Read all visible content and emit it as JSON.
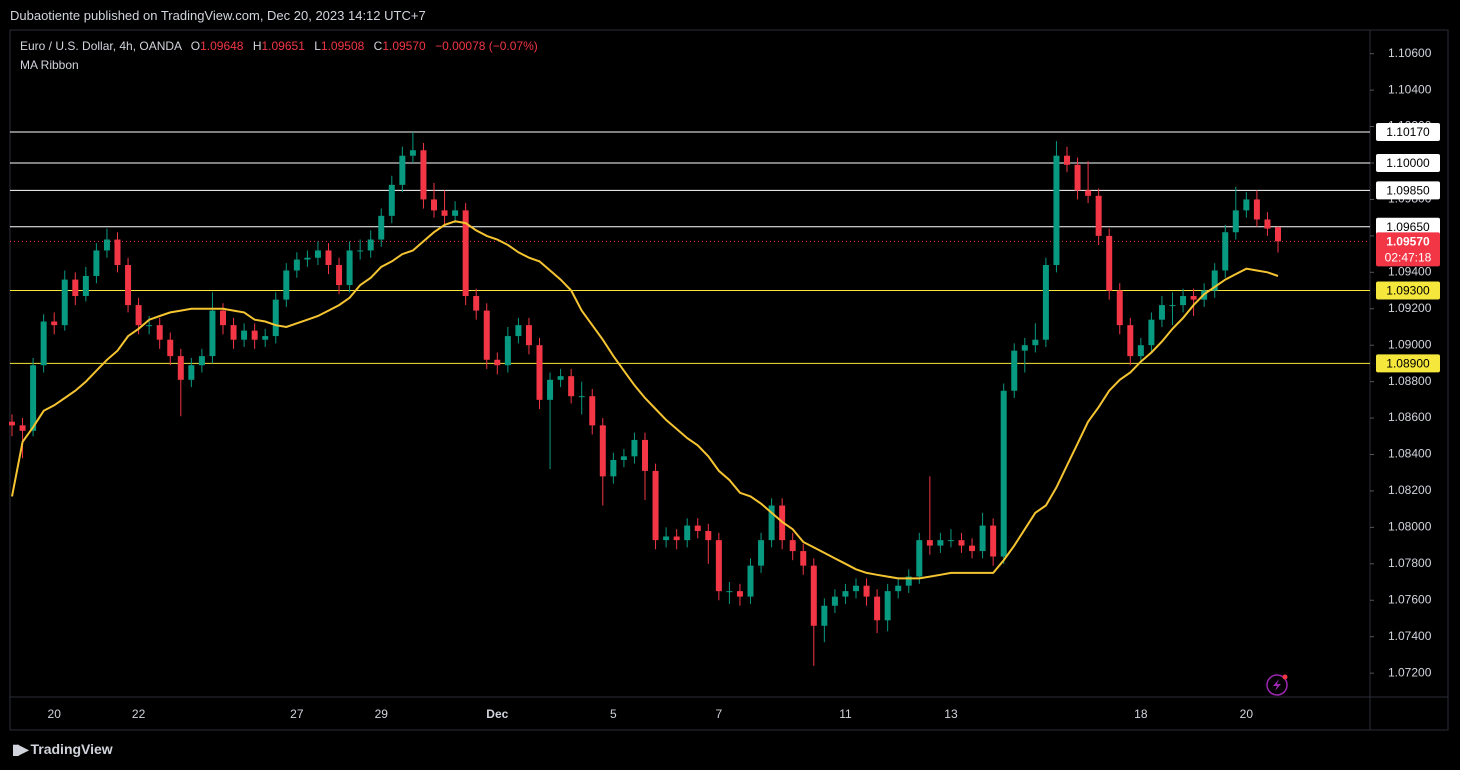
{
  "header": {
    "published": "Dubaotiente published on TradingView.com, Dec 20, 2023 14:12 UTC+7",
    "symbol": "Euro / U.S. Dollar, 4h, OANDA",
    "o_key": "O",
    "o": "1.09648",
    "h_key": "H",
    "h": "1.09651",
    "l_key": "L",
    "l": "1.09508",
    "c_key": "C",
    "c": "1.09570",
    "change": "−0.00078 (−0.07%)",
    "indicator": "MA Ribbon"
  },
  "chart_data": {
    "type": "candlestick",
    "up_color": "#089981",
    "down_color": "#f23645",
    "ma_color": "#f5c431",
    "ohlc": [
      [
        1.0858,
        1.0862,
        1.085,
        1.0856
      ],
      [
        1.0856,
        1.086,
        1.0838,
        1.0853
      ],
      [
        1.0853,
        1.0893,
        1.085,
        1.0889
      ],
      [
        1.0889,
        1.0917,
        1.0885,
        1.0913
      ],
      [
        1.0913,
        1.0918,
        1.0906,
        1.0911
      ],
      [
        1.0911,
        1.0941,
        1.0908,
        1.0936
      ],
      [
        1.0936,
        1.094,
        1.0922,
        1.0927
      ],
      [
        1.0927,
        1.0943,
        1.0924,
        1.0938
      ],
      [
        1.0938,
        1.0956,
        1.0934,
        1.0952
      ],
      [
        1.0952,
        1.0964,
        1.0948,
        1.0958
      ],
      [
        1.0958,
        1.0962,
        1.094,
        1.0944
      ],
      [
        1.0944,
        1.0948,
        1.0918,
        1.0922
      ],
      [
        1.0922,
        1.0926,
        1.0906,
        1.0911
      ],
      [
        1.0911,
        1.0916,
        1.0906,
        1.0911
      ],
      [
        1.0911,
        1.0915,
        1.0898,
        1.0903
      ],
      [
        1.0903,
        1.0907,
        1.0889,
        1.0894
      ],
      [
        1.0894,
        1.0898,
        1.0861,
        1.0881
      ],
      [
        1.0881,
        1.0893,
        1.0877,
        1.0889
      ],
      [
        1.0889,
        1.0898,
        1.0885,
        1.0894
      ],
      [
        1.0894,
        1.0929,
        1.089,
        1.0919
      ],
      [
        1.0919,
        1.0923,
        1.0906,
        1.0911
      ],
      [
        1.0911,
        1.0915,
        1.0898,
        1.0903
      ],
      [
        1.0903,
        1.0912,
        1.0899,
        1.0908
      ],
      [
        1.0908,
        1.0912,
        1.0898,
        1.0903
      ],
      [
        1.0903,
        1.0909,
        1.0899,
        1.0905
      ],
      [
        1.0905,
        1.0929,
        1.0901,
        1.0925
      ],
      [
        1.0925,
        1.0945,
        1.0921,
        1.0941
      ],
      [
        1.0941,
        1.0951,
        1.0937,
        1.0947
      ],
      [
        1.0947,
        1.0952,
        1.0943,
        1.0948
      ],
      [
        1.0948,
        1.0957,
        1.0944,
        1.0952
      ],
      [
        1.0952,
        1.0956,
        1.0939,
        1.0944
      ],
      [
        1.0944,
        1.0948,
        1.0928,
        1.0933
      ],
      [
        1.0933,
        1.0957,
        1.0929,
        1.0952
      ],
      [
        1.0952,
        1.0958,
        1.0947,
        1.0952
      ],
      [
        1.0952,
        1.0963,
        1.0948,
        1.0958
      ],
      [
        1.0958,
        1.0975,
        1.0954,
        1.0971
      ],
      [
        1.0971,
        1.0993,
        1.0967,
        1.0988
      ],
      [
        1.0988,
        1.1009,
        1.0984,
        1.1004
      ],
      [
        1.1004,
        1.1017,
        1.1,
        1.1007
      ],
      [
        1.1007,
        1.1011,
        1.0975,
        1.098
      ],
      [
        1.098,
        1.0989,
        1.097,
        1.0974
      ],
      [
        1.0974,
        1.0985,
        1.0966,
        1.0971
      ],
      [
        1.0971,
        1.0979,
        1.0967,
        1.0974
      ],
      [
        1.0974,
        1.0978,
        1.0922,
        1.0927
      ],
      [
        1.0927,
        1.0931,
        1.0914,
        1.0919
      ],
      [
        1.0919,
        1.0923,
        1.0887,
        1.0892
      ],
      [
        1.0892,
        1.0896,
        1.0884,
        1.0889
      ],
      [
        1.0889,
        1.091,
        1.0885,
        1.0905
      ],
      [
        1.0905,
        1.0915,
        1.0901,
        1.0911
      ],
      [
        1.0911,
        1.0915,
        1.0895,
        1.09
      ],
      [
        1.09,
        1.0904,
        1.0865,
        1.087
      ],
      [
        1.087,
        1.0885,
        1.0832,
        1.0881
      ],
      [
        1.0881,
        1.0887,
        1.0877,
        1.0883
      ],
      [
        1.0883,
        1.0887,
        1.0868,
        1.0872
      ],
      [
        1.0872,
        1.088,
        1.0862,
        1.0872
      ],
      [
        1.0872,
        1.0876,
        1.0851,
        1.0856
      ],
      [
        1.0856,
        1.086,
        1.0812,
        1.0828
      ],
      [
        1.0828,
        1.0841,
        1.0824,
        1.0837
      ],
      [
        1.0837,
        1.0843,
        1.0833,
        1.0839
      ],
      [
        1.0839,
        1.0852,
        1.0835,
        1.0848
      ],
      [
        1.0848,
        1.0852,
        1.0815,
        1.0831
      ],
      [
        1.0831,
        1.0835,
        1.0788,
        1.0793
      ],
      [
        1.0793,
        1.08,
        1.0789,
        1.0795
      ],
      [
        1.0795,
        1.0799,
        1.0788,
        1.0793
      ],
      [
        1.0793,
        1.0805,
        1.0789,
        1.0801
      ],
      [
        1.0801,
        1.0805,
        1.0794,
        1.0798
      ],
      [
        1.0798,
        1.0802,
        1.078,
        1.0793
      ],
      [
        1.0793,
        1.0797,
        1.076,
        1.0765
      ],
      [
        1.0765,
        1.077,
        1.0758,
        1.0765
      ],
      [
        1.0765,
        1.0769,
        1.0757,
        1.0762
      ],
      [
        1.0762,
        1.0783,
        1.0758,
        1.0779
      ],
      [
        1.0779,
        1.0797,
        1.0775,
        1.0793
      ],
      [
        1.0793,
        1.0816,
        1.0789,
        1.0812
      ],
      [
        1.0812,
        1.0816,
        1.0788,
        1.0793
      ],
      [
        1.0793,
        1.0797,
        1.0782,
        1.0787
      ],
      [
        1.0787,
        1.0791,
        1.0774,
        1.0779
      ],
      [
        1.0779,
        1.0783,
        1.0724,
        1.0746
      ],
      [
        1.0746,
        1.0761,
        1.0737,
        1.0757
      ],
      [
        1.0757,
        1.0766,
        1.0753,
        1.0762
      ],
      [
        1.0762,
        1.0769,
        1.0758,
        1.0765
      ],
      [
        1.0765,
        1.0772,
        1.0761,
        1.0768
      ],
      [
        1.0768,
        1.0772,
        1.0757,
        1.0762
      ],
      [
        1.0762,
        1.0766,
        1.0742,
        1.0749
      ],
      [
        1.0749,
        1.0769,
        1.0743,
        1.0765
      ],
      [
        1.0765,
        1.0772,
        1.0761,
        1.0768
      ],
      [
        1.0768,
        1.0777,
        1.0764,
        1.0773
      ],
      [
        1.0773,
        1.0797,
        1.0769,
        1.0793
      ],
      [
        1.0793,
        1.0828,
        1.0785,
        1.079
      ],
      [
        1.079,
        1.0797,
        1.0786,
        1.0793
      ],
      [
        1.0793,
        1.0799,
        1.0789,
        1.0793
      ],
      [
        1.0793,
        1.0797,
        1.0786,
        1.079
      ],
      [
        1.079,
        1.0794,
        1.0783,
        1.0787
      ],
      [
        1.0787,
        1.0808,
        1.0783,
        1.0801
      ],
      [
        1.0801,
        1.0805,
        1.0779,
        1.0784
      ],
      [
        1.0784,
        1.0879,
        1.078,
        1.0875
      ],
      [
        1.0875,
        1.0901,
        1.0871,
        1.0897
      ],
      [
        1.0897,
        1.0904,
        1.0885,
        1.09
      ],
      [
        1.09,
        1.0912,
        1.0896,
        1.0903
      ],
      [
        1.0903,
        1.0948,
        1.0899,
        1.0944
      ],
      [
        1.0944,
        1.1012,
        1.094,
        1.1004
      ],
      [
        1.1004,
        1.1009,
        1.0995,
        1.0999
      ],
      [
        1.0999,
        1.1003,
        1.098,
        1.0985
      ],
      [
        1.0985,
        1.1001,
        1.0978,
        1.0982
      ],
      [
        1.0982,
        1.0986,
        1.0955,
        1.096
      ],
      [
        1.096,
        1.0964,
        1.0925,
        1.093
      ],
      [
        1.093,
        1.0934,
        1.0906,
        1.0911
      ],
      [
        1.0911,
        1.0915,
        1.0889,
        1.0894
      ],
      [
        1.0894,
        1.0904,
        1.089,
        1.09
      ],
      [
        1.09,
        1.0918,
        1.0896,
        1.0914
      ],
      [
        1.0914,
        1.0927,
        1.091,
        1.0922
      ],
      [
        1.0922,
        1.0929,
        1.0911,
        1.0922
      ],
      [
        1.0922,
        1.0931,
        1.0918,
        1.0927
      ],
      [
        1.0927,
        1.0931,
        1.0916,
        1.0925
      ],
      [
        1.0925,
        1.0934,
        1.0921,
        1.093
      ],
      [
        1.093,
        1.0945,
        1.0926,
        1.0941
      ],
      [
        1.0941,
        1.0966,
        1.0937,
        1.0962
      ],
      [
        1.0962,
        1.0987,
        1.0958,
        1.0974
      ],
      [
        1.0974,
        1.0984,
        1.097,
        1.098
      ],
      [
        1.098,
        1.0985,
        1.0965,
        1.0969
      ],
      [
        1.0969,
        1.0973,
        1.096,
        1.0964
      ],
      [
        1.09648,
        1.09651,
        1.09508,
        1.0957
      ]
    ],
    "ma_values": [
      1.0817,
      1.0847,
      1.0855,
      1.0864,
      1.0867,
      1.0871,
      1.0875,
      1.088,
      1.0886,
      1.0892,
      1.0897,
      1.0905,
      1.0909,
      1.0914,
      1.0916,
      1.0918,
      1.0919,
      1.092,
      1.092,
      1.092,
      1.092,
      1.0919,
      1.0918,
      1.0914,
      1.0913,
      1.0911,
      1.091,
      1.0912,
      1.0914,
      1.0916,
      1.0919,
      1.0922,
      1.0926,
      1.0933,
      1.0937,
      1.0943,
      1.0946,
      1.095,
      1.0952,
      1.0957,
      1.0962,
      1.0966,
      1.0968,
      1.0967,
      1.0963,
      1.096,
      1.0958,
      1.0955,
      1.0951,
      1.0948,
      1.0946,
      1.0941,
      1.0936,
      1.093,
      1.0919,
      1.0911,
      1.0903,
      1.0894,
      1.0886,
      1.0878,
      1.0871,
      1.0865,
      1.0859,
      1.0854,
      1.0849,
      1.0845,
      1.0839,
      1.0831,
      1.0826,
      1.0819,
      1.0817,
      1.0813,
      1.0808,
      1.0803,
      1.0799,
      1.0792,
      1.0789,
      1.0786,
      1.0783,
      1.078,
      1.0777,
      1.0775,
      1.0774,
      1.0773,
      1.0772,
      1.0772,
      1.0772,
      1.0773,
      1.0774,
      1.0775,
      1.0775,
      1.0775,
      1.0775,
      1.0775,
      1.0782,
      1.079,
      1.0799,
      1.0808,
      1.0812,
      1.0822,
      1.0834,
      1.0846,
      1.0858,
      1.0866,
      1.0875,
      1.0881,
      1.0885,
      1.0891,
      1.0896,
      1.0902,
      1.0909,
      1.0915,
      1.0922,
      1.0928,
      1.0932,
      1.0936,
      1.0939,
      1.0942,
      1.0941,
      1.094,
      1.0938
    ],
    "xticks": [
      {
        "value": 4,
        "label": "20"
      },
      {
        "value": 12,
        "label": "22"
      },
      {
        "value": 27,
        "label": "27"
      },
      {
        "value": 35,
        "label": "29"
      },
      {
        "value": 46,
        "label": "Dec"
      },
      {
        "value": 57,
        "label": "5"
      },
      {
        "value": 67,
        "label": "7"
      },
      {
        "value": 79,
        "label": "11"
      },
      {
        "value": 89,
        "label": "13"
      },
      {
        "value": 107,
        "label": "18"
      },
      {
        "value": 117,
        "label": "20"
      }
    ],
    "ylim": [
      1.0708,
      1.1073
    ],
    "yticks": [
      {
        "value": 1.106,
        "label": "1.10600"
      },
      {
        "value": 1.104,
        "label": "1.10400"
      },
      {
        "value": 1.102,
        "label": "1.10200"
      },
      {
        "value": 1.1,
        "label": "1.10000"
      },
      {
        "value": 1.098,
        "label": "1.09800"
      },
      {
        "value": 1.096,
        "label": "1.09600"
      },
      {
        "value": 1.094,
        "label": "1.09400"
      },
      {
        "value": 1.092,
        "label": "1.09200"
      },
      {
        "value": 1.09,
        "label": "1.09000"
      },
      {
        "value": 1.088,
        "label": "1.08800"
      },
      {
        "value": 1.086,
        "label": "1.08600"
      },
      {
        "value": 1.084,
        "label": "1.08400"
      },
      {
        "value": 1.082,
        "label": "1.08200"
      },
      {
        "value": 1.08,
        "label": "1.08000"
      },
      {
        "value": 1.078,
        "label": "1.07800"
      },
      {
        "value": 1.076,
        "label": "1.07600"
      },
      {
        "value": 1.074,
        "label": "1.07400"
      },
      {
        "value": 1.072,
        "label": "1.07200"
      }
    ],
    "levels": [
      {
        "value": 1.1017,
        "label": "1.10170",
        "color": "#ffffff"
      },
      {
        "value": 1.1,
        "label": "1.10000",
        "color": "#ffffff"
      },
      {
        "value": 1.0985,
        "label": "1.09850",
        "color": "#ffffff"
      },
      {
        "value": 1.0965,
        "label": "1.09650",
        "color": "#ffffff"
      },
      {
        "value": 1.093,
        "label": "1.09300",
        "color": "#f5e73b"
      },
      {
        "value": 1.089,
        "label": "1.08900",
        "color": "#f5e73b"
      }
    ],
    "last_price": {
      "value": 1.0957,
      "label": "1.09570"
    },
    "last_color": "#f23645",
    "countdown": "02:47:18"
  },
  "footer": "TradingView"
}
